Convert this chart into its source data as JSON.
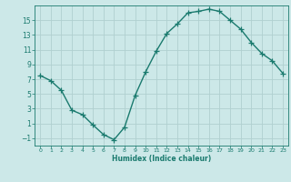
{
  "x": [
    0,
    1,
    2,
    3,
    4,
    5,
    6,
    7,
    8,
    9,
    10,
    11,
    12,
    13,
    14,
    15,
    16,
    17,
    18,
    19,
    20,
    21,
    22,
    23
  ],
  "y": [
    7.5,
    6.8,
    5.5,
    2.8,
    2.2,
    0.8,
    -0.5,
    -1.2,
    0.5,
    4.8,
    8.0,
    10.8,
    13.2,
    14.5,
    16.0,
    16.2,
    16.5,
    16.2,
    15.0,
    13.8,
    12.0,
    10.5,
    9.5,
    7.8
  ],
  "line_color": "#1a7a6e",
  "marker": "+",
  "marker_size": 4,
  "bg_color": "#cce8e8",
  "grid_color": "#b0d0d0",
  "axis_color": "#1a7a6e",
  "text_color": "#1a7a6e",
  "xlabel": "Humidex (Indice chaleur)",
  "xlim": [
    -0.5,
    23.5
  ],
  "ylim": [
    -2,
    17
  ],
  "yticks": [
    -1,
    1,
    3,
    5,
    7,
    9,
    11,
    13,
    15
  ],
  "xticks": [
    0,
    1,
    2,
    3,
    4,
    5,
    6,
    7,
    8,
    9,
    10,
    11,
    12,
    13,
    14,
    15,
    16,
    17,
    18,
    19,
    20,
    21,
    22,
    23
  ]
}
